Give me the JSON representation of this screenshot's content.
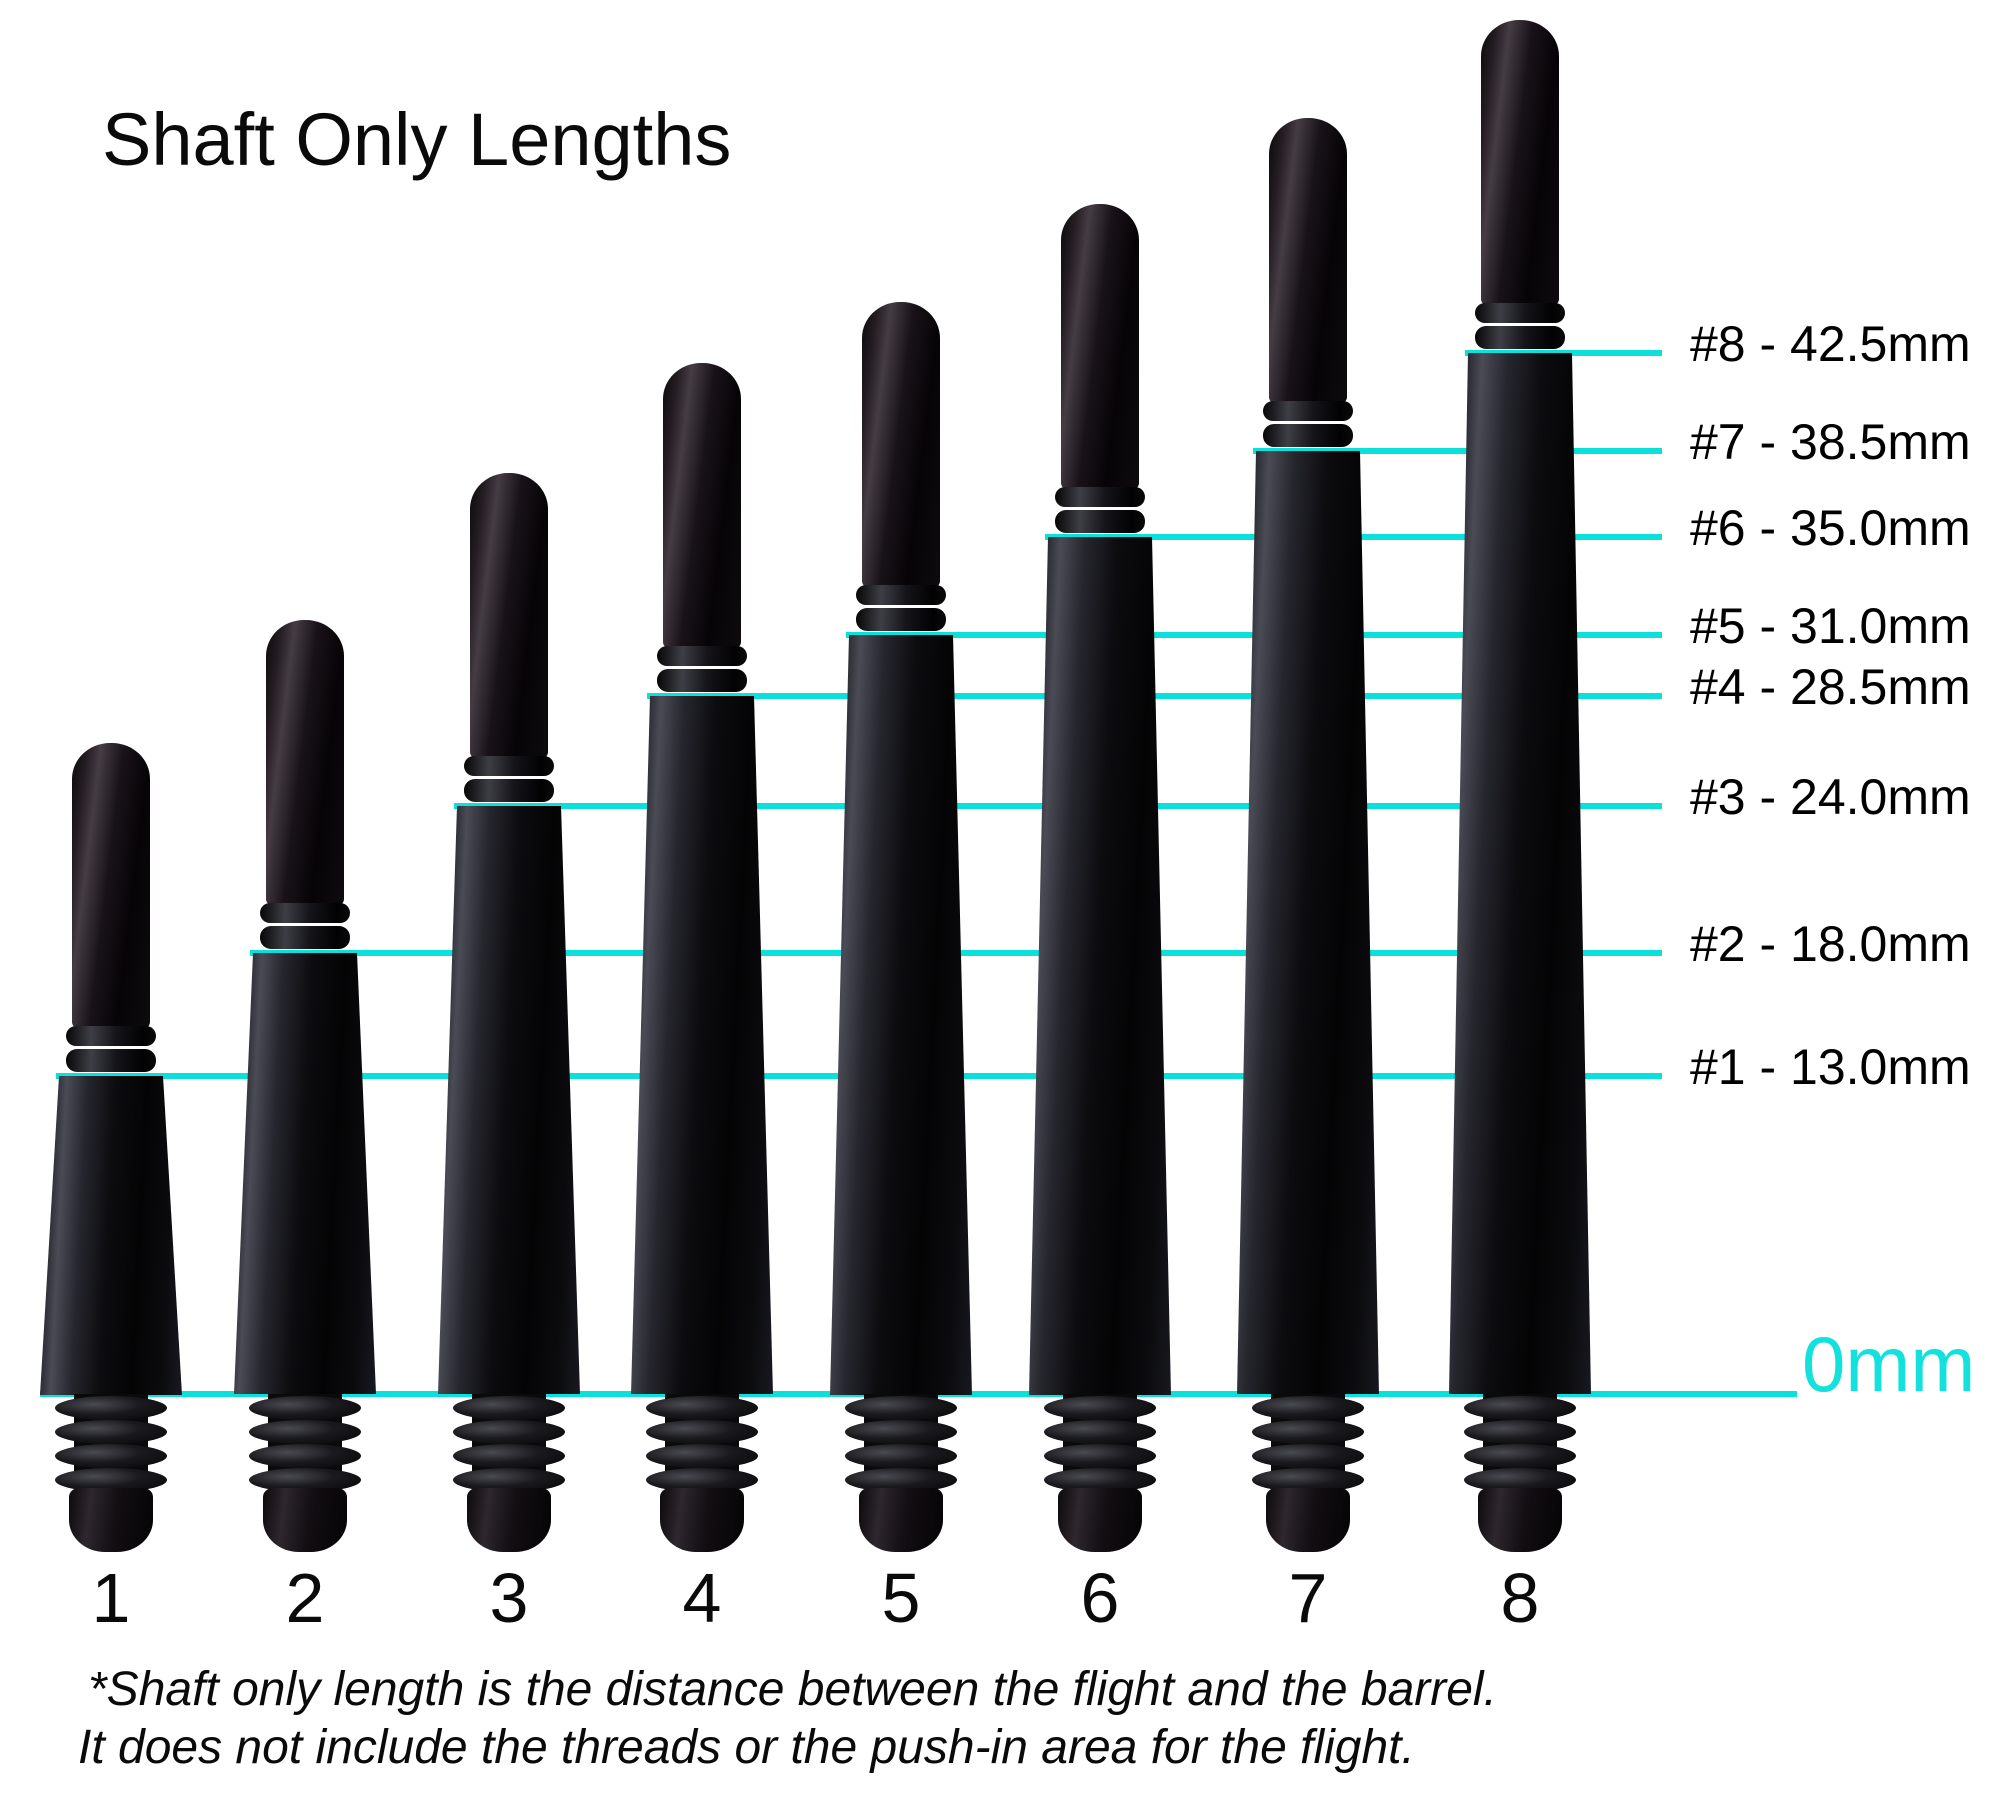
{
  "title": "Shaft Only Lengths",
  "unit": "mm",
  "baseline": {
    "label": "0mm",
    "value_mm": 0
  },
  "shafts": [
    {
      "number": "1",
      "length_mm": 13.0,
      "size_label": "#1 - 13.0mm"
    },
    {
      "number": "2",
      "length_mm": 18.0,
      "size_label": "#2 - 18.0mm"
    },
    {
      "number": "3",
      "length_mm": 24.0,
      "size_label": "#3 - 24.0mm"
    },
    {
      "number": "4",
      "length_mm": 28.5,
      "size_label": "#4 - 28.5mm"
    },
    {
      "number": "5",
      "length_mm": 31.0,
      "size_label": "#5 - 31.0mm"
    },
    {
      "number": "6",
      "length_mm": 35.0,
      "size_label": "#6 - 35.0mm"
    },
    {
      "number": "7",
      "length_mm": 38.5,
      "size_label": "#7 - 38.5mm"
    },
    {
      "number": "8",
      "length_mm": 42.5,
      "size_label": "#8 - 42.5mm"
    }
  ],
  "footnote": {
    "line1": "*Shaft only length is the distance between the flight and the barrel.",
    "line2": "It does not include the threads or the push-in area for the flight."
  },
  "colors": {
    "measure_line": "#0ce0da",
    "baseline_label": "#12e1dd",
    "text": "#000000",
    "background": "#ffffff",
    "shaft": "#0d0b0e"
  },
  "chart_data": {
    "type": "diagram",
    "title": "Shaft Only Lengths",
    "categories": [
      "1",
      "2",
      "3",
      "4",
      "5",
      "6",
      "7",
      "8"
    ],
    "values_mm": [
      13.0,
      18.0,
      24.0,
      28.5,
      31.0,
      35.0,
      38.5,
      42.5
    ],
    "unit": "mm",
    "baseline_label": "0mm",
    "tick_labels": [
      "#1 - 13.0mm",
      "#2 - 18.0mm",
      "#3 - 24.0mm",
      "#4 - 28.5mm",
      "#5 - 31.0mm",
      "#6 - 35.0mm",
      "#7 - 38.5mm",
      "#8 - 42.5mm"
    ],
    "legend": false,
    "grid": false
  }
}
